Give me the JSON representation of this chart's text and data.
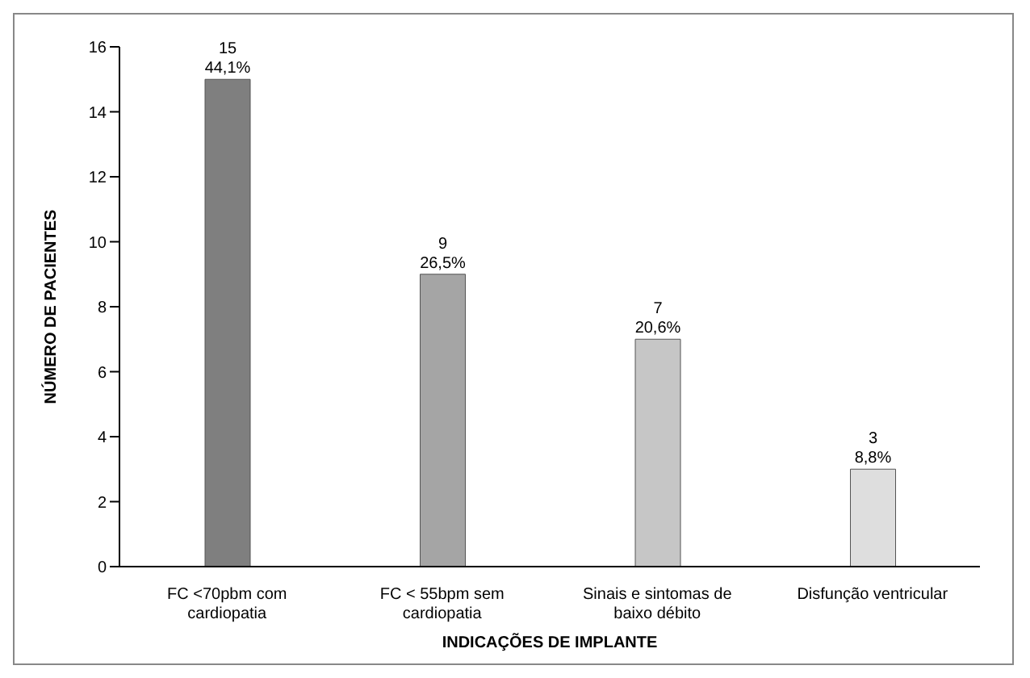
{
  "chart_data": {
    "type": "bar",
    "xlabel": "INDICAÇÕES DE IMPLANTE",
    "ylabel": "NÚMERO DE PACIENTES",
    "categories": [
      "FC <70pbm com cardiopatia",
      "FC < 55bpm sem cardiopatia",
      "Sinais e sintomas de baixo débito",
      "Disfunção ventricular"
    ],
    "values": [
      15,
      9,
      7,
      3
    ],
    "colors": [
      "#7f7f7f",
      "#a5a5a5",
      "#c6c6c6",
      "#dedede"
    ],
    "value_labels": [
      "15\n44,1%",
      "9\n26,5%",
      "7\n20,6%",
      "3\n8,8%"
    ],
    "ylim": [
      0,
      16
    ],
    "yticks": [
      0,
      2,
      4,
      6,
      8,
      10,
      12,
      14,
      16
    ],
    "grid": false,
    "legend": false
  }
}
